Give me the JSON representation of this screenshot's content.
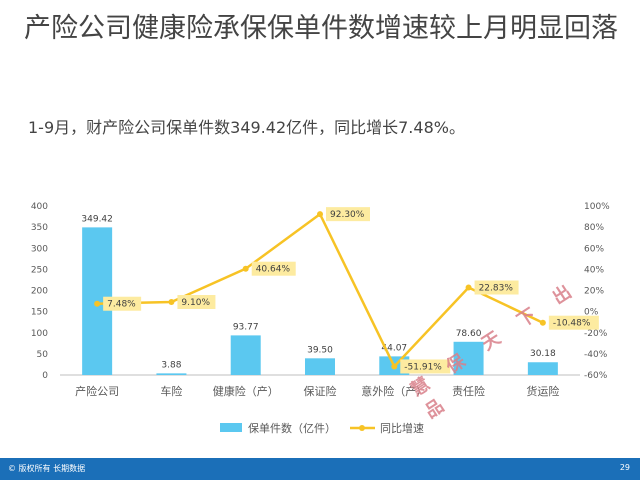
{
  "title": "产险公司健康险承保保单件数增速较上月明显回落",
  "subtitle": "1-9月，财产险公司保单件数349.42亿件，同比增长7.48%。",
  "footer": {
    "copyright": "© 版权所有 长期数据",
    "page_number": "29"
  },
  "watermark": "慧 保 天 下 出 品",
  "colors": {
    "bar": "#5bc8f0",
    "line": "#f7c325",
    "label_bg": "#fdeba0",
    "footer": "#1b6fb8"
  },
  "chart_data": {
    "type": "bar",
    "categories": [
      "产险公司",
      "车险",
      "健康险（产）",
      "保证险",
      "意外险（产）",
      "责任险",
      "货运险"
    ],
    "series": [
      {
        "name": "保单件数（亿件）",
        "type": "bar",
        "axis": "left",
        "values": [
          349.42,
          3.88,
          93.77,
          39.5,
          44.07,
          78.6,
          30.18
        ],
        "labels": [
          "349.42",
          "3.88",
          "93.77",
          "39.50",
          "44.07",
          "78.60",
          "30.18"
        ]
      },
      {
        "name": "同比增速",
        "type": "line",
        "axis": "right",
        "values": [
          7.48,
          9.1,
          40.64,
          92.3,
          -51.91,
          22.83,
          -10.48
        ],
        "labels": [
          "7.48%",
          "9.10%",
          "40.64%",
          "92.30%",
          "-51.91%",
          "22.83%",
          "-10.48%"
        ]
      }
    ],
    "y_left": {
      "min": 0,
      "max": 400,
      "ticks": [
        "0",
        "50",
        "100",
        "150",
        "200",
        "250",
        "300",
        "350",
        "400"
      ]
    },
    "y_right": {
      "min": -60,
      "max": 100,
      "ticks": [
        "-60%",
        "-40%",
        "-20%",
        "0%",
        "20%",
        "40%",
        "60%",
        "80%",
        "100%"
      ]
    },
    "legend_position": "bottom",
    "grid": false
  }
}
